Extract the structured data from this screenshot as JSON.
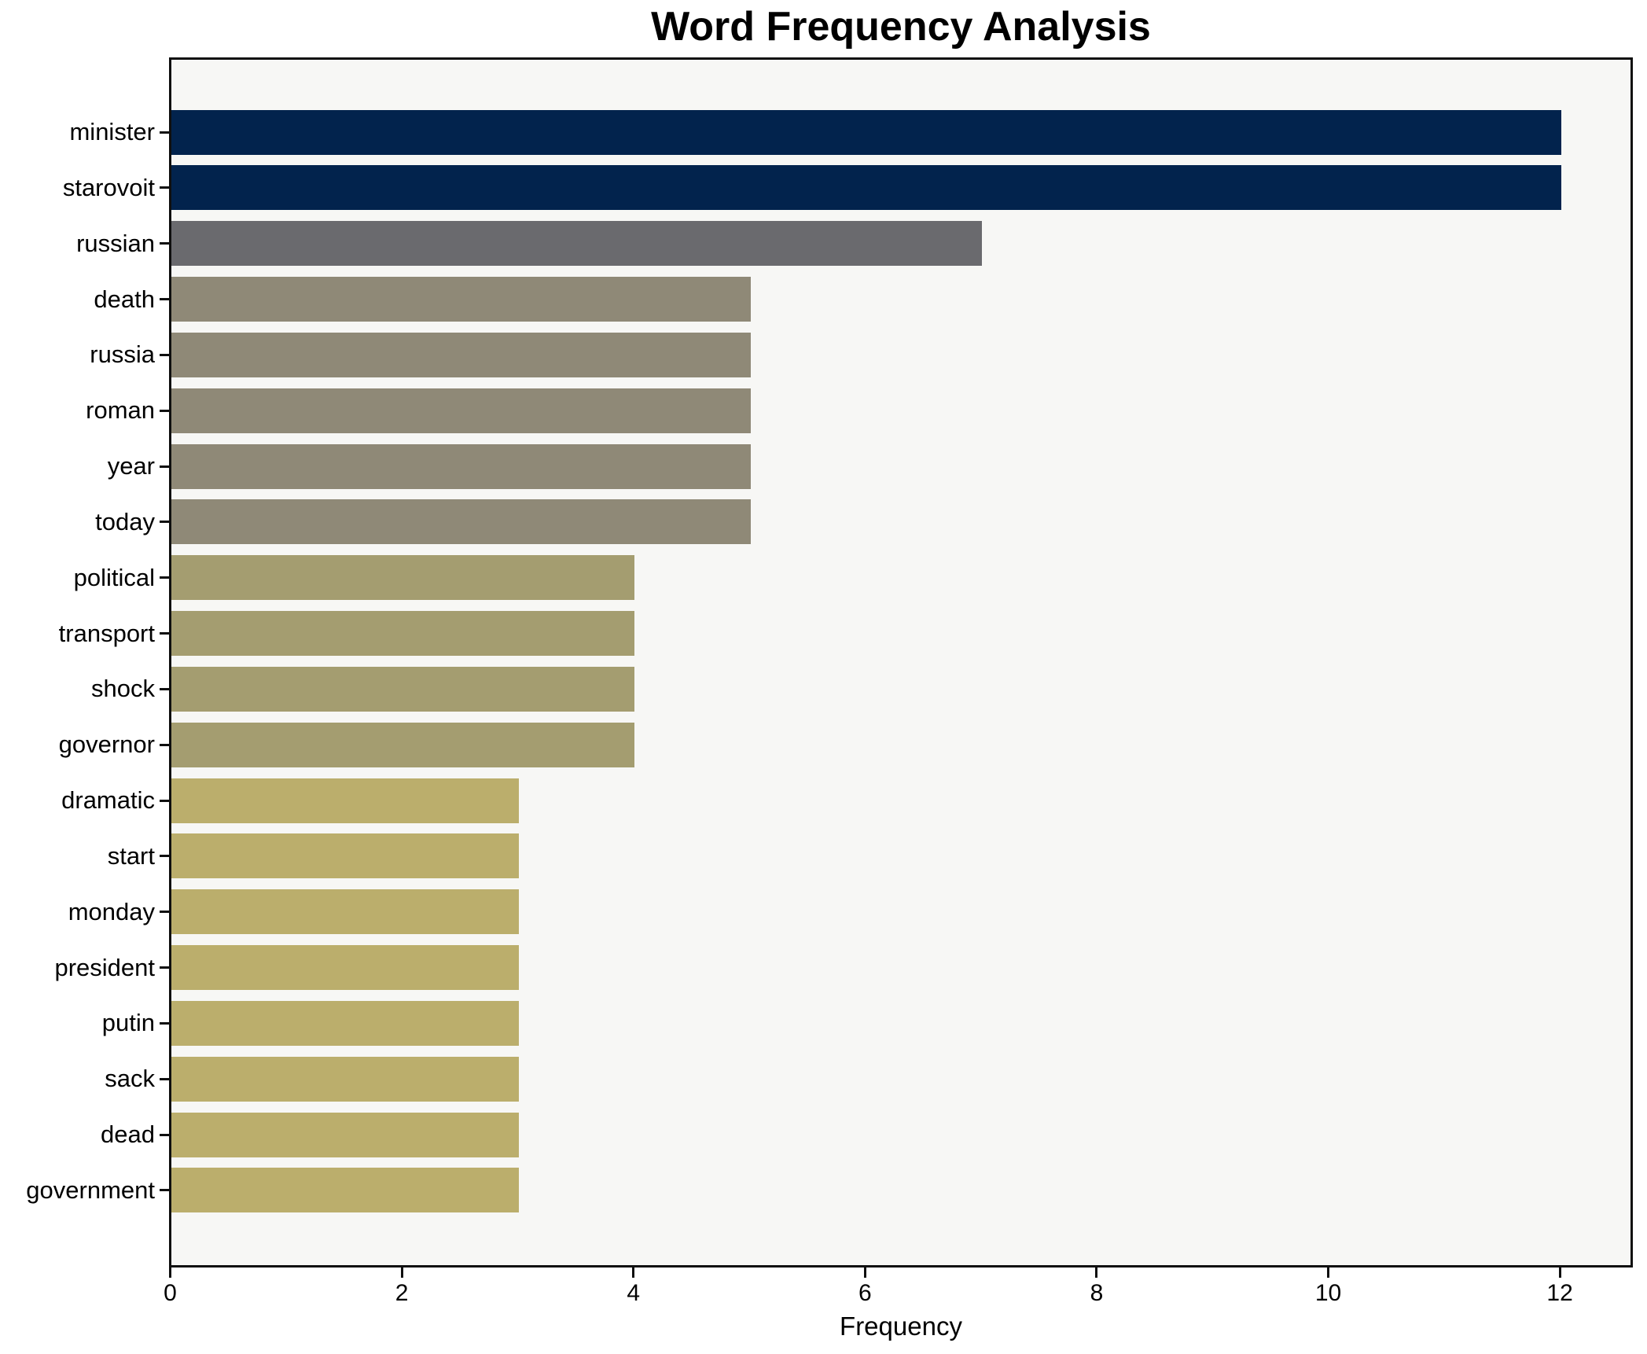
{
  "title": "Word Frequency Analysis",
  "chart_data": {
    "type": "bar",
    "orientation": "horizontal",
    "title": "Word Frequency Analysis",
    "xlabel": "Frequency",
    "ylabel": "",
    "categories": [
      "minister",
      "starovoit",
      "russian",
      "death",
      "russia",
      "roman",
      "year",
      "today",
      "political",
      "transport",
      "shock",
      "governor",
      "dramatic",
      "start",
      "monday",
      "president",
      "putin",
      "sack",
      "dead",
      "government"
    ],
    "values": [
      12,
      12,
      7,
      5,
      5,
      5,
      5,
      5,
      4,
      4,
      4,
      4,
      3,
      3,
      3,
      3,
      3,
      3,
      3,
      3
    ],
    "bar_colors": [
      "#02234d",
      "#02234d",
      "#6a6a6e",
      "#8f8977",
      "#8f8977",
      "#8f8977",
      "#8f8977",
      "#8f8977",
      "#a49d70",
      "#a49d70",
      "#a49d70",
      "#a49d70",
      "#bbae6c",
      "#bbae6c",
      "#bbae6c",
      "#bbae6c",
      "#bbae6c",
      "#bbae6c",
      "#bbae6c",
      "#bbae6c"
    ],
    "xlim": [
      0,
      12.6
    ],
    "xticks": [
      0,
      2,
      4,
      6,
      8,
      10,
      12
    ],
    "grid": false,
    "legend": "none",
    "colors": {
      "plot_background": "#f7f7f5",
      "figure_background": "#ffffff",
      "frame": "#0f0f0f",
      "text": "#000000"
    }
  }
}
